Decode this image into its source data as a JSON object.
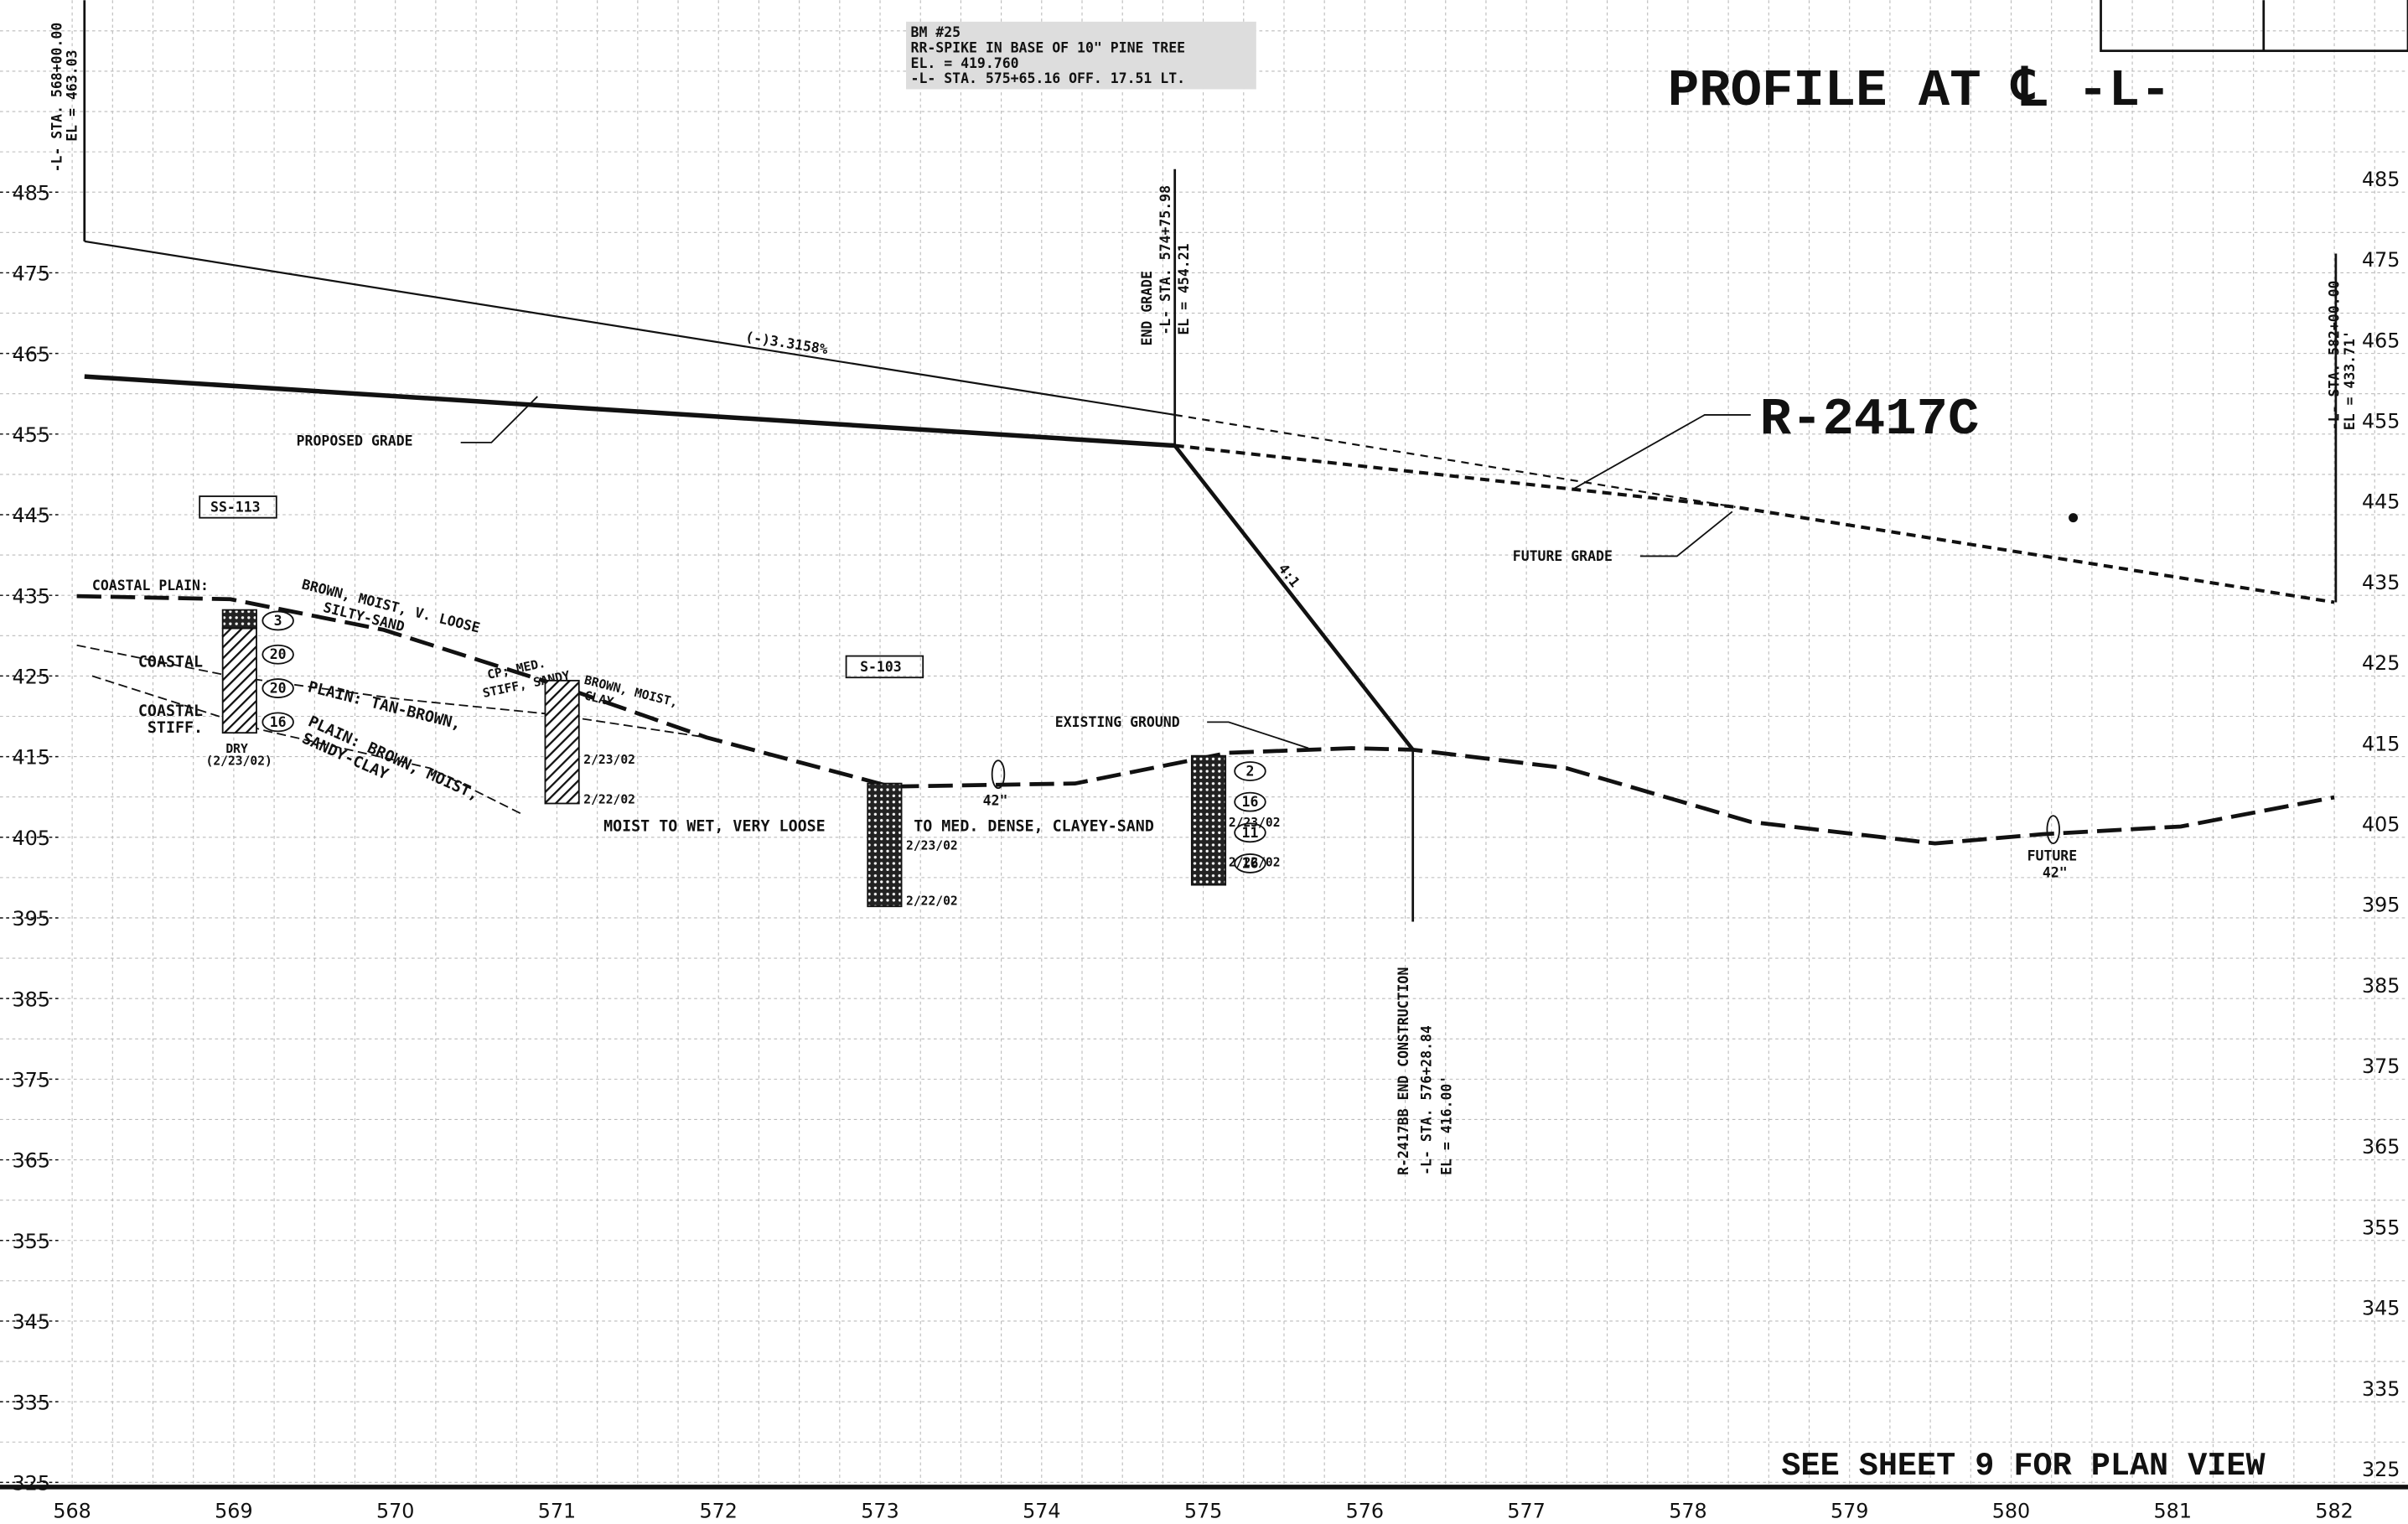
{
  "title": "PROFILE AT ℄ -L-",
  "project": "R-2417C",
  "footer": "SEE SHEET 9 FOR PLAN VIEW",
  "benchmark": [
    "BM #25",
    "RR-SPIKE IN BASE OF 10\" PINE TREE",
    "EL. = 419.760",
    "-L- STA. 575+65.16 OFF. 17.51 LT."
  ],
  "elevations": [
    485,
    475,
    465,
    455,
    445,
    435,
    425,
    415,
    405,
    395,
    385,
    375,
    365,
    355,
    345,
    335,
    325
  ],
  "stations": [
    568,
    569,
    570,
    571,
    572,
    573,
    574,
    575,
    576,
    577,
    578,
    579,
    580,
    581,
    582
  ],
  "stations_notes": {
    "start": [
      "-L- STA. 568+00.00",
      "EL = 463.03"
    ],
    "end_grade": [
      "END GRADE",
      "-L- STA. 574+75.98",
      "EL = 454.21"
    ],
    "end": [
      "-L- STA. 582+00.00",
      "EL = 433.71'"
    ],
    "end_construction": [
      "R-2417BB END CONSTRUCTION",
      "-L- STA. 576+28.84",
      "EL = 416.00'"
    ]
  },
  "labels": {
    "grade": "(-)3.3158%",
    "proposed": "PROPOSED GRADE",
    "future": "FUTURE GRADE",
    "existing": "EXISTING GROUND",
    "slope": "4:1",
    "ss113": "SS-113",
    "s103": "S-103",
    "pipe": "42\"",
    "future_pipe": [
      "FUTURE",
      "42\""
    ],
    "soil_mid": [
      "MOIST TO WET, VERY LOOSE",
      "TO MED. DENSE, CLAYEY-SAND"
    ]
  },
  "soil": {
    "a": "COASTAL PLAIN:",
    "b": "COASTAL",
    "c": [
      "COASTAL",
      "STIFF."
    ],
    "d": [
      "BROWN, MOIST, V. LOOSE",
      "SILTY-SAND"
    ],
    "e": [
      "CP; MED.",
      "STIFF, SANDY"
    ],
    "f": "PLAIN: TAN-BROWN,",
    "g": [
      "PLAIN: BROWN, MOIST,",
      "SANDY-CLAY"
    ],
    "h": [
      "BROWN, MOIST,",
      "CLAY"
    ],
    "dry": [
      "DRY",
      "(2/23/02)"
    ]
  },
  "blows_1": [
    3,
    20,
    20,
    16
  ],
  "blows_2": [
    2,
    16,
    11,
    16
  ],
  "boring_dates": [
    [
      "2/23/02",
      "2/22/02"
    ],
    [
      "2/23/02",
      "2/22/02"
    ],
    [
      "2/23/02",
      "2/22/02"
    ]
  ]
}
